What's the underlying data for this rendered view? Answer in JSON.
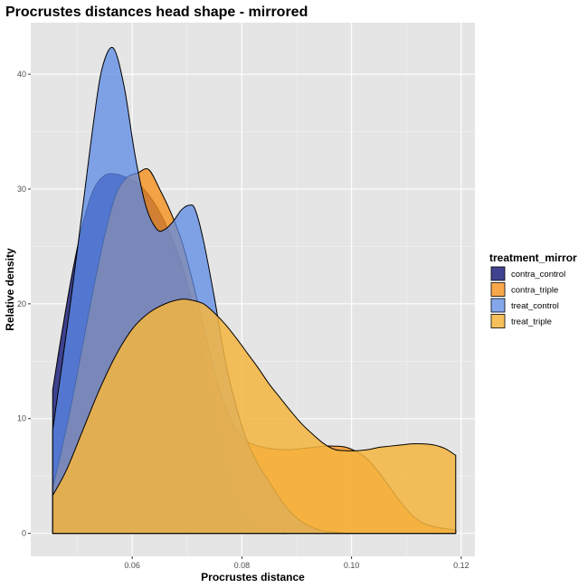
{
  "chart_data": {
    "type": "area",
    "subtype": "density",
    "title": "Procrustes distances head shape - mirrored",
    "xlabel": "Procrustes distance",
    "ylabel": "Relative density",
    "xlim": [
      0.0415,
      0.1225
    ],
    "ylim": [
      -2,
      44.5
    ],
    "x_ticks": [
      0.06,
      0.08,
      0.1,
      0.12
    ],
    "x_tick_labels": [
      "0.06",
      "0.08",
      "0.10",
      "0.12"
    ],
    "y_ticks": [
      0,
      10,
      20,
      30,
      40
    ],
    "y_tick_labels": [
      "0",
      "10",
      "20",
      "30",
      "40"
    ],
    "grid": true,
    "background": "#e5e5e5",
    "legend": {
      "title": "treatment_mirror",
      "position": "right"
    },
    "series": [
      {
        "name": "contra_control",
        "color": "#2b2f84",
        "opacity": 0.9,
        "x": [
          0.0455,
          0.047,
          0.049,
          0.051,
          0.053,
          0.055,
          0.057,
          0.059,
          0.061,
          0.063,
          0.065,
          0.067,
          0.069,
          0.071,
          0.073,
          0.075,
          0.077,
          0.079,
          0.081,
          0.083,
          0.085,
          0.087,
          0.09,
          0.095,
          0.1,
          0.11,
          0.119
        ],
        "y": [
          12.5,
          17.0,
          22.5,
          27.0,
          30.0,
          31.2,
          31.3,
          31.0,
          30.5,
          29.5,
          28.0,
          26.0,
          23.5,
          20.0,
          15.5,
          10.5,
          6.0,
          3.0,
          1.2,
          0.4,
          0.1,
          0.0,
          0.0,
          0.0,
          0.0,
          0.0,
          0.0
        ]
      },
      {
        "name": "contra_triple",
        "color": "#f7911e",
        "opacity": 0.8,
        "x": [
          0.0455,
          0.047,
          0.049,
          0.051,
          0.053,
          0.055,
          0.057,
          0.059,
          0.061,
          0.063,
          0.065,
          0.067,
          0.069,
          0.071,
          0.073,
          0.075,
          0.077,
          0.079,
          0.081,
          0.083,
          0.085,
          0.087,
          0.089,
          0.091,
          0.093,
          0.095,
          0.097,
          0.099,
          0.101,
          0.103,
          0.105,
          0.107,
          0.109,
          0.111,
          0.113,
          0.115,
          0.117,
          0.119
        ],
        "y": [
          4.0,
          7.0,
          11.5,
          16.5,
          21.5,
          26.0,
          29.5,
          31.0,
          31.4,
          31.7,
          30.0,
          28.0,
          25.5,
          22.0,
          18.0,
          14.0,
          11.0,
          9.0,
          8.0,
          7.6,
          7.4,
          7.3,
          7.3,
          7.4,
          7.5,
          7.6,
          7.6,
          7.5,
          7.1,
          6.4,
          5.3,
          4.0,
          2.7,
          1.6,
          0.9,
          0.6,
          0.4,
          0.3
        ]
      },
      {
        "name": "treat_control",
        "color": "#5b8ae6",
        "opacity": 0.75,
        "x": [
          0.0455,
          0.047,
          0.049,
          0.051,
          0.053,
          0.0545,
          0.0565,
          0.0585,
          0.0605,
          0.0625,
          0.0645,
          0.066,
          0.0675,
          0.069,
          0.0705,
          0.0715,
          0.073,
          0.075,
          0.077,
          0.079,
          0.081,
          0.083,
          0.085,
          0.087,
          0.089,
          0.091,
          0.093,
          0.095,
          0.097,
          0.099,
          0.1,
          0.11,
          0.119
        ],
        "y": [
          9.0,
          14.0,
          21.0,
          28.5,
          36.0,
          40.5,
          42.3,
          39.0,
          33.0,
          28.5,
          26.5,
          26.5,
          27.2,
          28.2,
          28.6,
          28.2,
          25.5,
          20.5,
          15.0,
          11.0,
          8.0,
          6.0,
          4.5,
          3.0,
          1.8,
          1.0,
          0.5,
          0.2,
          0.1,
          0.0,
          0.0,
          0.0,
          0.0
        ]
      },
      {
        "name": "treat_triple",
        "color": "#f4b53f",
        "opacity": 0.85,
        "x": [
          0.0455,
          0.048,
          0.051,
          0.054,
          0.057,
          0.06,
          0.063,
          0.066,
          0.069,
          0.071,
          0.073,
          0.075,
          0.077,
          0.079,
          0.081,
          0.083,
          0.085,
          0.087,
          0.089,
          0.091,
          0.093,
          0.095,
          0.097,
          0.099,
          0.101,
          0.103,
          0.105,
          0.107,
          0.109,
          0.111,
          0.113,
          0.115,
          0.117,
          0.119
        ],
        "y": [
          3.3,
          5.5,
          9.0,
          12.5,
          15.5,
          17.8,
          19.2,
          20.0,
          20.4,
          20.3,
          20.0,
          19.2,
          18.2,
          17.0,
          15.7,
          14.4,
          13.0,
          11.8,
          10.6,
          9.5,
          8.6,
          7.8,
          7.3,
          7.2,
          7.2,
          7.3,
          7.5,
          7.6,
          7.7,
          7.8,
          7.8,
          7.7,
          7.4,
          6.8
        ]
      }
    ]
  }
}
